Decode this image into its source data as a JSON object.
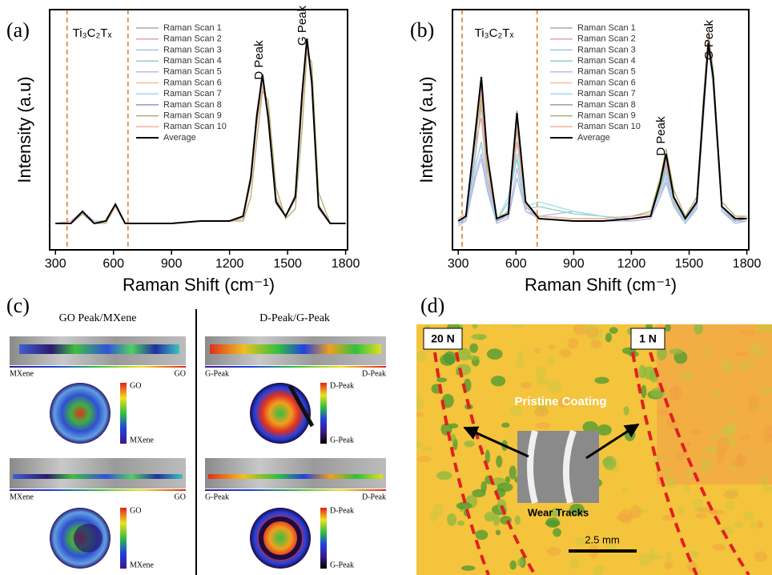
{
  "chart_data": [
    {
      "type": "line",
      "label": "(a)",
      "x_label": "Raman Shift (cm⁻¹)",
      "y_label": "Intensity (a.u)",
      "annotations": [
        "Ti₃C₂Tₓ",
        "D Peak",
        "G Peak"
      ],
      "vlines": [
        360,
        675
      ],
      "vline_color": "#e07a20",
      "xlim": [
        270,
        1810
      ],
      "xticks": [
        300,
        600,
        900,
        1200,
        1500,
        1800
      ],
      "ylim": [
        0,
        100
      ],
      "x": [
        300,
        380,
        440,
        500,
        560,
        610,
        660,
        750,
        900,
        1050,
        1200,
        1270,
        1310,
        1340,
        1370,
        1400,
        1440,
        1490,
        1540,
        1575,
        1600,
        1625,
        1660,
        1720,
        1800
      ],
      "series": [
        {
          "name": "Raman Scan 1",
          "color": "#a8a8bc",
          "values": [
            11,
            11,
            15,
            11,
            12,
            18,
            11,
            11,
            11,
            12,
            12,
            14,
            31,
            57,
            72,
            53,
            19,
            14,
            23,
            66,
            86,
            68,
            17,
            11,
            11
          ]
        },
        {
          "name": "Raman Scan 2",
          "color": "#e6a4a4",
          "values": [
            11,
            12,
            16,
            11,
            12,
            19,
            11,
            11,
            11,
            12,
            12,
            13,
            28,
            53,
            70,
            57,
            21,
            14,
            21,
            62,
            87,
            72,
            18,
            11,
            11
          ]
        },
        {
          "name": "Raman Scan 3",
          "color": "#a4c2e4",
          "values": [
            11,
            11,
            16,
            12,
            12,
            18,
            11,
            11,
            11,
            12,
            12,
            14,
            30,
            56,
            71,
            54,
            20,
            14,
            22,
            64,
            88,
            69,
            18,
            11,
            11
          ]
        },
        {
          "name": "Raman Scan 4",
          "color": "#8ed0c0",
          "values": [
            11,
            11,
            15,
            11,
            12,
            19,
            11,
            11,
            11,
            12,
            12,
            13,
            29,
            54,
            69,
            56,
            21,
            14,
            21,
            63,
            85,
            71,
            19,
            11,
            11
          ]
        },
        {
          "name": "Raman Scan 5",
          "color": "#c4b4e4",
          "values": [
            11,
            11,
            16,
            11,
            12,
            19,
            11,
            11,
            11,
            12,
            12,
            14,
            31,
            56,
            72,
            54,
            19,
            14,
            22,
            65,
            87,
            69,
            17,
            11,
            11
          ]
        },
        {
          "name": "Raman Scan 6",
          "color": "#f0c494",
          "values": [
            11,
            11,
            16,
            11,
            12,
            19,
            11,
            11,
            11,
            12,
            12,
            14,
            29,
            53,
            70,
            57,
            22,
            14,
            21,
            61,
            86,
            73,
            19,
            11,
            11
          ]
        },
        {
          "name": "Raman Scan 7",
          "color": "#9cdcf0",
          "values": [
            11,
            11,
            15,
            11,
            12,
            18,
            11,
            11,
            11,
            12,
            12,
            14,
            30,
            55,
            71,
            55,
            20,
            14,
            22,
            64,
            86,
            70,
            18,
            11,
            11
          ]
        },
        {
          "name": "Raman Scan 8",
          "color": "#9c96b0",
          "values": [
            11,
            11,
            16,
            11,
            12,
            19,
            11,
            11,
            11,
            12,
            12,
            14,
            30,
            56,
            72,
            55,
            20,
            14,
            22,
            65,
            87,
            70,
            18,
            11,
            11
          ]
        },
        {
          "name": "Raman Scan 9",
          "color": "#aeae70",
          "values": [
            11,
            11,
            15,
            11,
            11,
            18,
            11,
            11,
            11,
            12,
            12,
            12,
            22,
            45,
            66,
            62,
            26,
            13,
            17,
            50,
            82,
            78,
            24,
            11,
            11
          ]
        },
        {
          "name": "Raman Scan 10",
          "color": "#f0b2a2",
          "values": [
            11,
            11,
            16,
            11,
            12,
            18,
            11,
            11,
            11,
            12,
            12,
            13,
            28,
            52,
            68,
            57,
            22,
            14,
            21,
            60,
            84,
            73,
            19,
            11,
            11
          ]
        },
        {
          "name": "Average",
          "color": "#000000",
          "values": [
            11,
            11,
            16,
            11,
            12,
            19,
            11,
            11,
            11,
            12,
            12,
            14,
            30,
            55,
            73,
            55,
            20,
            14,
            22,
            65,
            88,
            70,
            18,
            11,
            11
          ]
        }
      ]
    },
    {
      "type": "line",
      "label": "(b)",
      "x_label": "Raman Shift (cm⁻¹)",
      "y_label": "Intensity (a.u)",
      "annotations": [
        "Ti₃C₂Tₓ",
        "D Peak",
        "G Peak"
      ],
      "vlines": [
        320,
        710
      ],
      "vline_color": "#e07a20",
      "xlim": [
        270,
        1810
      ],
      "xticks": [
        300,
        600,
        900,
        1200,
        1500,
        1800
      ],
      "ylim": [
        0,
        100
      ],
      "x": [
        300,
        340,
        390,
        420,
        450,
        500,
        560,
        605,
        650,
        720,
        900,
        1050,
        1200,
        1300,
        1350,
        1380,
        1420,
        1480,
        1540,
        1575,
        1600,
        1625,
        1670,
        1740,
        1800
      ],
      "series": [
        {
          "name": "Raman Scan 1",
          "color": "#a8a8bc",
          "values": [
            11,
            13,
            40,
            60,
            34,
            12,
            14,
            50,
            18,
            13,
            12,
            12,
            13,
            14,
            25,
            35,
            20,
            12,
            18,
            58,
            88,
            70,
            17,
            12,
            13
          ]
        },
        {
          "name": "Raman Scan 2",
          "color": "#e6a4a4",
          "values": [
            13,
            15,
            45,
            55,
            30,
            13,
            16,
            45,
            19,
            14,
            13,
            13,
            14,
            15,
            27,
            36,
            21,
            14,
            19,
            62,
            89,
            71,
            18,
            13,
            14
          ]
        },
        {
          "name": "Raman Scan 3",
          "color": "#a4c2e4",
          "values": [
            10,
            12,
            30,
            38,
            25,
            11,
            13,
            30,
            16,
            14,
            16,
            14,
            12,
            13,
            22,
            28,
            18,
            11,
            17,
            55,
            84,
            68,
            16,
            11,
            12
          ]
        },
        {
          "name": "Raman Scan 4",
          "color": "#8ed0c0",
          "values": [
            12,
            14,
            35,
            45,
            28,
            12,
            20,
            38,
            17,
            18,
            15,
            14,
            13,
            14,
            24,
            33,
            19,
            13,
            18,
            57,
            85,
            69,
            17,
            12,
            13
          ]
        },
        {
          "name": "Raman Scan 5",
          "color": "#c4b4e4",
          "values": [
            11,
            12,
            32,
            40,
            26,
            12,
            14,
            34,
            16,
            13,
            12,
            12,
            12,
            13,
            22,
            30,
            18,
            12,
            17,
            56,
            86,
            70,
            16,
            12,
            12
          ]
        },
        {
          "name": "Raman Scan 6",
          "color": "#f0c494",
          "values": [
            13,
            15,
            48,
            62,
            35,
            13,
            15,
            52,
            19,
            14,
            13,
            13,
            14,
            15,
            26,
            38,
            21,
            13,
            19,
            61,
            90,
            72,
            18,
            13,
            14
          ]
        },
        {
          "name": "Raman Scan 7",
          "color": "#9cdcf0",
          "values": [
            12,
            13,
            36,
            44,
            28,
            12,
            22,
            40,
            18,
            20,
            16,
            14,
            13,
            14,
            24,
            32,
            19,
            12,
            18,
            58,
            86,
            70,
            17,
            12,
            13
          ]
        },
        {
          "name": "Raman Scan 8",
          "color": "#9c96b0",
          "values": [
            12,
            14,
            46,
            68,
            38,
            12,
            15,
            58,
            20,
            13,
            12,
            12,
            13,
            14,
            27,
            38,
            22,
            13,
            19,
            60,
            87,
            71,
            18,
            12,
            13
          ]
        },
        {
          "name": "Raman Scan 9",
          "color": "#aeae70",
          "values": [
            13,
            15,
            47,
            64,
            36,
            13,
            16,
            54,
            19,
            14,
            13,
            13,
            14,
            16,
            30,
            42,
            25,
            14,
            22,
            64,
            91,
            75,
            20,
            14,
            14
          ]
        },
        {
          "name": "Raman Scan 10",
          "color": "#f0b2a2",
          "values": [
            13,
            15,
            50,
            66,
            38,
            13,
            15,
            55,
            19,
            14,
            13,
            13,
            14,
            15,
            28,
            39,
            21,
            13,
            20,
            62,
            90,
            73,
            18,
            13,
            14
          ]
        },
        {
          "name": "Average",
          "color": "#000000",
          "values": [
            12,
            14,
            50,
            72,
            40,
            13,
            15,
            57,
            20,
            13,
            12,
            12,
            13,
            14,
            28,
            40,
            22,
            13,
            20,
            60,
            86,
            72,
            18,
            13,
            13
          ]
        }
      ]
    }
  ],
  "panel_c": {
    "label": "(c)",
    "left": {
      "title": "GO Peak/MXene",
      "bar_left": "MXene",
      "bar_right": "GO",
      "scale_top": "GO",
      "scale_bottom": "MXene"
    },
    "right": {
      "title": "D-Peak/G-Peak",
      "bar_left": "G-Peak",
      "bar_right": "D-Peak",
      "scale_top": "D-Peak",
      "scale_bottom": "G-Peak"
    }
  },
  "panel_d": {
    "label": "(d)",
    "loads": [
      "20 N",
      "1 N"
    ],
    "region": "Pristine Coating",
    "inset": "Wear Tracks",
    "scale_bar": "2.5 mm"
  }
}
